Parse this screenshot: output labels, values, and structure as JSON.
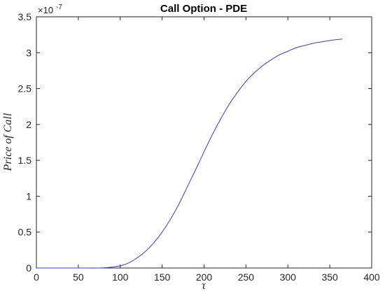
{
  "chart_data": {
    "type": "line",
    "title": "Call Option - PDE",
    "xlabel": "τ",
    "ylabel": "Price of Call",
    "xlim": [
      0,
      400
    ],
    "ylim": [
      0,
      3.5e-07
    ],
    "y_scale_exponent_label": {
      "base": "×10",
      "power": "-7"
    },
    "x_ticks": [
      "0",
      "50",
      "100",
      "150",
      "200",
      "250",
      "300",
      "350",
      "400"
    ],
    "y_ticks": [
      "0",
      "0.5",
      "1",
      "1.5",
      "2",
      "2.5",
      "3",
      "3.5"
    ],
    "grid": false,
    "series": [
      {
        "color": "#3b3bd4",
        "x": [
          0,
          50,
          80,
          100,
          110,
          120,
          130,
          140,
          150,
          160,
          170,
          180,
          190,
          200,
          210,
          220,
          230,
          240,
          250,
          260,
          270,
          280,
          290,
          300,
          310,
          320,
          330,
          340,
          350,
          365
        ],
        "y": [
          0,
          0,
          2e-10,
          3e-09,
          7e-09,
          1.4e-08,
          2.3e-08,
          3.5e-08,
          5e-08,
          6.8e-08,
          8.9e-08,
          1.13e-07,
          1.37e-07,
          1.62e-07,
          1.86e-07,
          2.08e-07,
          2.28e-07,
          2.45e-07,
          2.6e-07,
          2.72e-07,
          2.82e-07,
          2.9e-07,
          2.97e-07,
          3.02e-07,
          3.07e-07,
          3.1e-07,
          3.13e-07,
          3.15e-07,
          3.17e-07,
          3.19e-07
        ]
      }
    ]
  }
}
